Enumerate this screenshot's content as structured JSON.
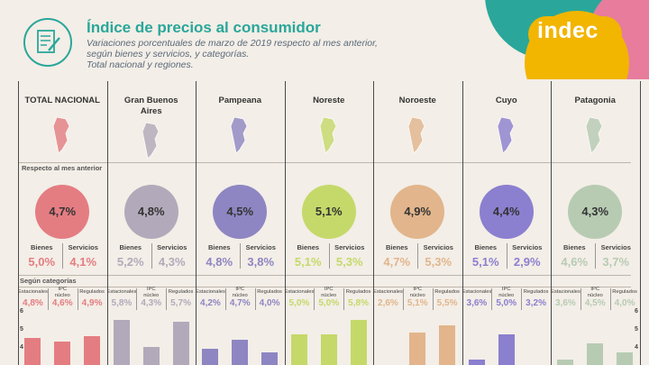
{
  "header": {
    "title": "Índice de precios al consumidor",
    "subtitle_lines": [
      "Variaciones porcentuales de marzo de 2019 respecto al mes anterior,",
      "según bienes y servicios, y categorías.",
      "Total nacional y regiones."
    ],
    "logo_text": "indec"
  },
  "labels": {
    "respecto_mes_anterior": "Respecto al mes anterior",
    "segun_categorias": "Según categorías",
    "bienes": "Bienes",
    "servicios": "Servicios",
    "estacionales": "Estacionales",
    "ipc_nucleo_line1": "IPC",
    "ipc_nucleo_line2": "núcleo",
    "regulados": "Regulados"
  },
  "colors": {
    "header_title": "#2aa79a",
    "logo_blob_yellow": "#f2b500",
    "logo_blob_pink": "#e77c9c",
    "logo_blob_green": "#2aa79a"
  },
  "chart_data": {
    "type": "bar",
    "title": "Índice de precios al consumidor",
    "unit": "%",
    "categories": [
      "Estacionales",
      "IPC núcleo",
      "Regulados"
    ],
    "ytick_labels": [
      "4",
      "5",
      "6"
    ],
    "regions": [
      {
        "name": "TOTAL NACIONAL",
        "color": "#e47d82",
        "total": "4,7%",
        "bienes": "5,0%",
        "servicios": "4,1%",
        "cat_labels": [
          "4,8%",
          "4,6%",
          "4,9%"
        ],
        "values": [
          4.8,
          4.6,
          4.9
        ]
      },
      {
        "name": "Gran Buenos Aires",
        "color": "#b2aaba",
        "total": "4,8%",
        "bienes": "5,2%",
        "servicios": "4,3%",
        "cat_labels": [
          "5,8%",
          "4,3%",
          "5,7%"
        ],
        "values": [
          5.8,
          4.3,
          5.7
        ]
      },
      {
        "name": "Pampeana",
        "color": "#8e86c2",
        "total": "4,5%",
        "bienes": "4,8%",
        "servicios": "3,8%",
        "cat_labels": [
          "4,2%",
          "4,7%",
          "4,0%"
        ],
        "values": [
          4.2,
          4.7,
          4.0
        ]
      },
      {
        "name": "Noreste",
        "color": "#c5d96a",
        "total": "5,1%",
        "bienes": "5,1%",
        "servicios": "5,3%",
        "cat_labels": [
          "5,0%",
          "5,0%",
          "5,8%"
        ],
        "values": [
          5.0,
          5.0,
          5.8
        ]
      },
      {
        "name": "Noroeste",
        "color": "#e2b58c",
        "total": "4,9%",
        "bienes": "4,7%",
        "servicios": "5,3%",
        "cat_labels": [
          "2,6%",
          "5,1%",
          "5,5%"
        ],
        "values": [
          2.6,
          5.1,
          5.5
        ]
      },
      {
        "name": "Cuyo",
        "color": "#8b7fcf",
        "total": "4,4%",
        "bienes": "5,1%",
        "servicios": "2,9%",
        "cat_labels": [
          "3,6%",
          "5,0%",
          "3,2%"
        ],
        "values": [
          3.6,
          5.0,
          3.2
        ]
      },
      {
        "name": "Patagonia",
        "color": "#b7cbb3",
        "total": "4,3%",
        "bienes": "4,6%",
        "servicios": "3,7%",
        "cat_labels": [
          "3,6%",
          "4,5%",
          "4,0%"
        ],
        "values": [
          3.6,
          4.5,
          4.0
        ]
      }
    ]
  }
}
